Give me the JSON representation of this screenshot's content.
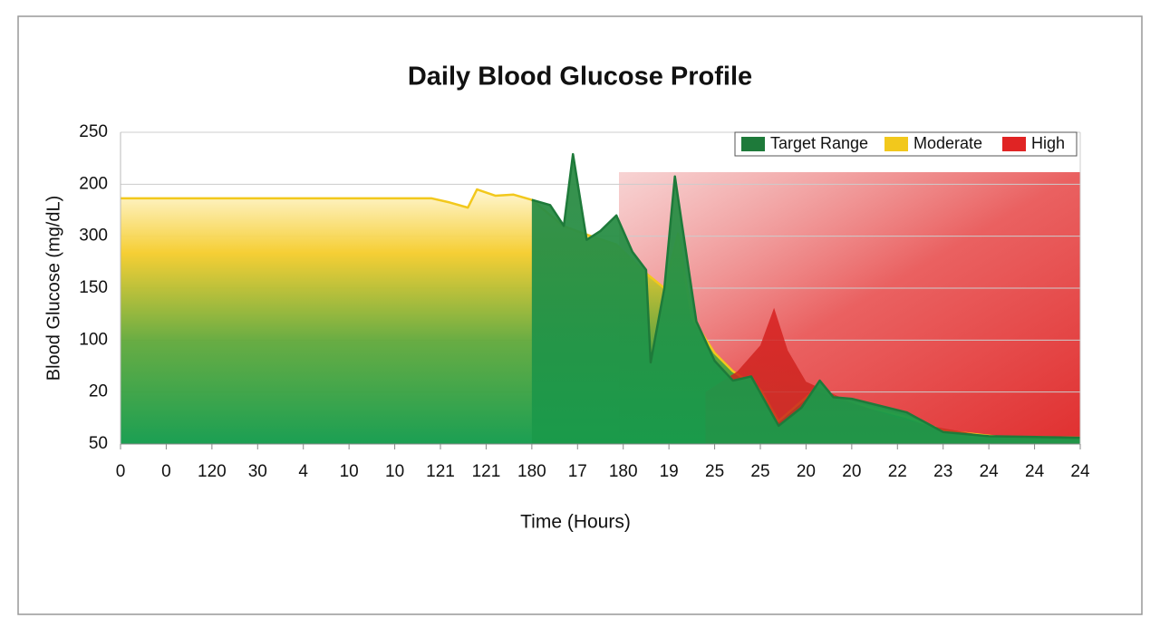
{
  "chart_data": {
    "type": "line",
    "title": "Daily Blood Glucose Profile",
    "x_label": "Time (Hours)",
    "y_label": "Blood Glucose (mg/dL)",
    "xlim": [
      0,
      21
    ],
    "ylim": [
      0,
      6
    ],
    "xticks": [
      {
        "value": 0,
        "label": "0"
      },
      {
        "value": 1,
        "label": "0"
      },
      {
        "value": 2,
        "label": "120"
      },
      {
        "value": 3,
        "label": "30"
      },
      {
        "value": 4,
        "label": "4"
      },
      {
        "value": 5,
        "label": "10"
      },
      {
        "value": 6,
        "label": "10"
      },
      {
        "value": 7,
        "label": "121"
      },
      {
        "value": 8,
        "label": "121"
      },
      {
        "value": 9,
        "label": "180"
      },
      {
        "value": 10,
        "label": "17"
      },
      {
        "value": 11,
        "label": "180"
      },
      {
        "value": 12,
        "label": "19"
      },
      {
        "value": 13,
        "label": "25"
      },
      {
        "value": 14,
        "label": "25"
      },
      {
        "value": 15,
        "label": "20"
      },
      {
        "value": 16,
        "label": "20"
      },
      {
        "value": 17,
        "label": "22"
      },
      {
        "value": 18,
        "label": "23"
      },
      {
        "value": 19,
        "label": "24"
      },
      {
        "value": 20,
        "label": "24"
      },
      {
        "value": 21,
        "label": "24"
      }
    ],
    "yticks": [
      {
        "value": 0,
        "label": "50"
      },
      {
        "value": 1,
        "label": "20"
      },
      {
        "value": 2,
        "label": "100"
      },
      {
        "value": 3,
        "label": "150"
      },
      {
        "value": 4,
        "label": "300"
      },
      {
        "value": 5,
        "label": "200"
      },
      {
        "value": 6,
        "label": "250"
      }
    ],
    "grid": true,
    "legend": "top-right",
    "series": [
      {
        "name": "Target Range",
        "color": "#1e7a3a",
        "fill": "area",
        "x": [
          9,
          9.4,
          9.7,
          9.9,
          10.2,
          10.5,
          10.85,
          11.2,
          11.5,
          11.6,
          11.9,
          12.13,
          12.6,
          13,
          13.4,
          13.8,
          14.4,
          14.9,
          15.3,
          15.6,
          16,
          17.2,
          18,
          19,
          21
        ],
        "values": [
          4.7,
          4.6,
          4.2,
          5.58,
          3.93,
          4.1,
          4.4,
          3.7,
          3.35,
          1.57,
          3.0,
          5.15,
          2.36,
          1.6,
          1.22,
          1.3,
          0.35,
          0.7,
          1.22,
          0.9,
          0.87,
          0.61,
          0.23,
          0.15,
          0.12
        ]
      },
      {
        "name": "Moderate",
        "color": "#f2c81c",
        "fill": "area",
        "x": [
          0,
          6.8,
          7.2,
          7.6,
          7.8,
          8.2,
          8.6,
          9,
          9.7,
          10.3,
          10.85,
          11.45,
          11.9,
          12.2,
          12.5,
          13,
          13.4,
          14,
          14.4,
          15.2,
          16,
          17.2,
          18,
          19.2,
          21
        ],
        "values": [
          4.73,
          4.73,
          4.65,
          4.55,
          4.9,
          4.78,
          4.8,
          4.7,
          4.19,
          4.0,
          3.84,
          3.32,
          3.0,
          4.05,
          2.44,
          1.75,
          1.4,
          1.05,
          0.44,
          1.05,
          0.79,
          0.52,
          0.26,
          0.14,
          0.12
        ]
      },
      {
        "name": "High",
        "color": "#e02424",
        "fill": "area-only",
        "x": [
          12.8,
          13.5,
          14,
          14.3,
          14.6,
          15,
          16,
          17,
          18,
          19,
          21
        ],
        "values": [
          1.0,
          1.4,
          1.9,
          2.62,
          1.8,
          1.2,
          0.8,
          0.5,
          0.3,
          0.15,
          0.12
        ]
      }
    ]
  }
}
